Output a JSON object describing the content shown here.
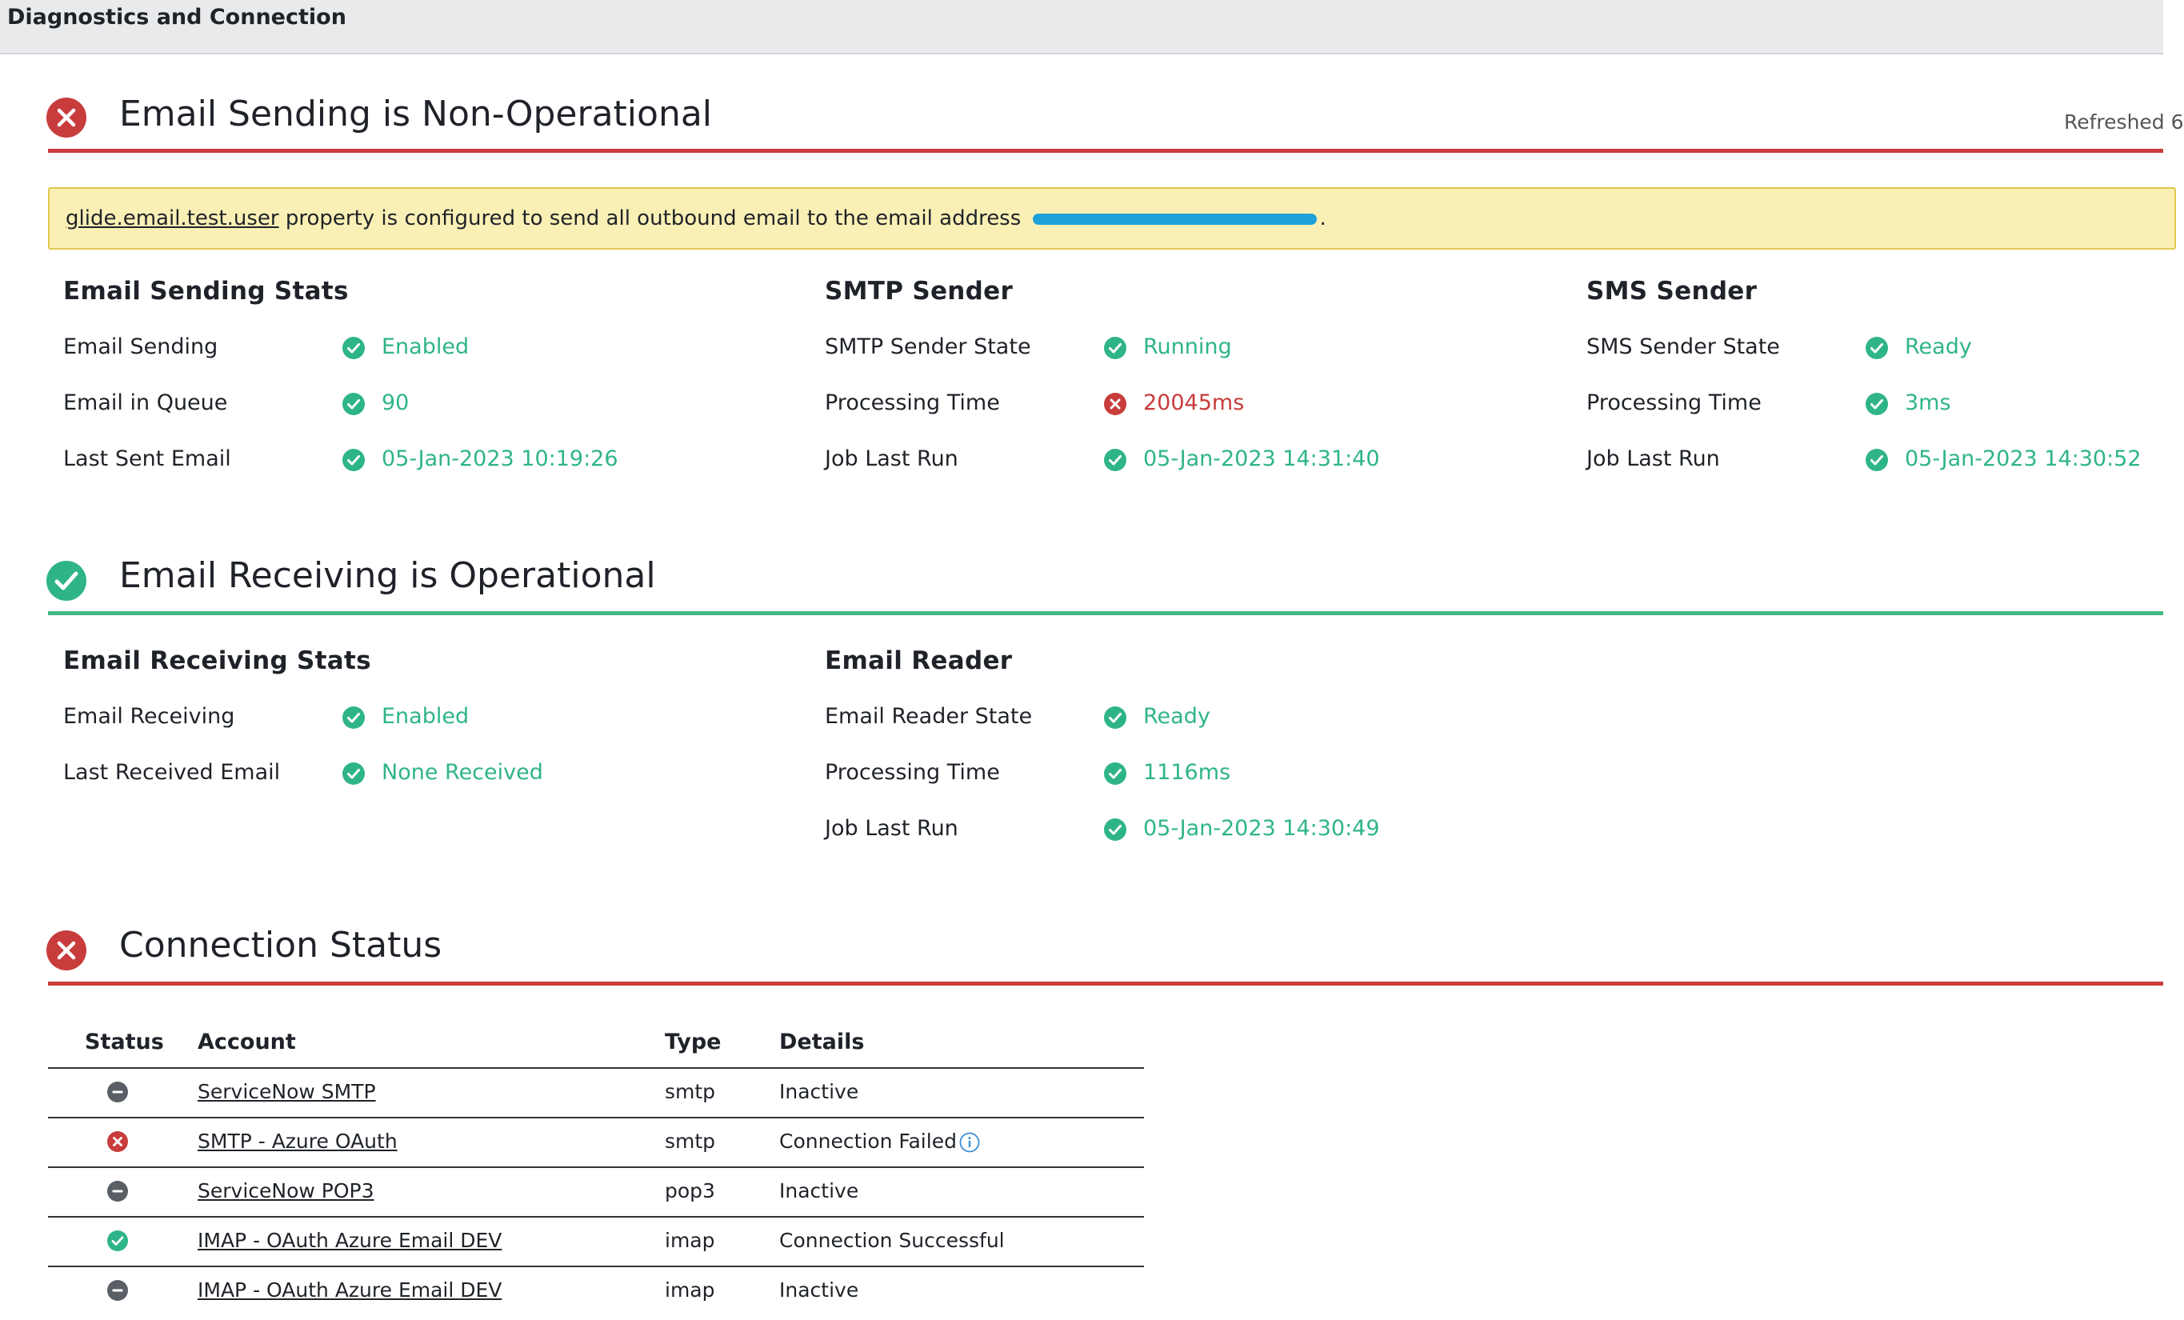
{
  "window": {
    "title": "Diagnostics and Connection"
  },
  "colors": {
    "ok": "#2fb48a",
    "error": "#c83c3c",
    "neutral": "#5a5f66",
    "banner_bg": "#faf0b5",
    "banner_border": "#e3c84f",
    "redaction": "#1ea0d8"
  },
  "sending": {
    "title": "Email Sending is Non-Operational",
    "status_icon": "error-icon",
    "refreshed": "Refreshed 6",
    "banner": {
      "property_link": "glide.email.test.user",
      "message": " property is configured to send all outbound email to the email address ",
      "suffix": "."
    },
    "stats": {
      "title": "Email Sending Stats",
      "rows": [
        {
          "label": "Email Sending",
          "value": "Enabled",
          "status": "ok"
        },
        {
          "label": "Email in Queue",
          "value": "90",
          "status": "ok"
        },
        {
          "label": "Last Sent Email",
          "value": "05-Jan-2023 10:19:26",
          "status": "ok"
        }
      ]
    },
    "smtp": {
      "title": "SMTP Sender",
      "rows": [
        {
          "label": "SMTP Sender State",
          "value": "Running",
          "status": "ok"
        },
        {
          "label": "Processing Time",
          "value": "20045ms",
          "status": "error"
        },
        {
          "label": "Job Last Run",
          "value": "05-Jan-2023 14:31:40",
          "status": "ok"
        }
      ]
    },
    "sms": {
      "title": "SMS Sender",
      "rows": [
        {
          "label": "SMS Sender State",
          "value": "Ready",
          "status": "ok"
        },
        {
          "label": "Processing Time",
          "value": "3ms",
          "status": "ok"
        },
        {
          "label": "Job Last Run",
          "value": "05-Jan-2023 14:30:52",
          "status": "ok"
        }
      ]
    }
  },
  "receiving": {
    "title": "Email Receiving is Operational",
    "status_icon": "check-icon",
    "stats": {
      "title": "Email Receiving Stats",
      "rows": [
        {
          "label": "Email Receiving",
          "value": "Enabled",
          "status": "ok"
        },
        {
          "label": "Last Received Email",
          "value": "None Received",
          "status": "ok"
        }
      ]
    },
    "reader": {
      "title": "Email Reader",
      "rows": [
        {
          "label": "Email Reader State",
          "value": "Ready",
          "status": "ok"
        },
        {
          "label": "Processing Time",
          "value": "1116ms",
          "status": "ok"
        },
        {
          "label": "Job Last Run",
          "value": "05-Jan-2023 14:30:49",
          "status": "ok"
        }
      ]
    }
  },
  "connection": {
    "title": "Connection Status",
    "status_icon": "error-icon",
    "headers": {
      "status": "Status",
      "account": "Account",
      "type": "Type",
      "details": "Details"
    },
    "rows": [
      {
        "status": "inactive",
        "account": "ServiceNow SMTP",
        "type": "smtp",
        "details": "Inactive",
        "info": false
      },
      {
        "status": "error",
        "account": "SMTP - Azure OAuth",
        "type": "smtp",
        "details": "Connection Failed",
        "info": true
      },
      {
        "status": "inactive",
        "account": "ServiceNow POP3",
        "type": "pop3",
        "details": "Inactive",
        "info": false
      },
      {
        "status": "ok",
        "account": "IMAP - OAuth Azure Email DEV",
        "type": "imap",
        "details": "Connection Successful",
        "info": false
      },
      {
        "status": "inactive",
        "account": "IMAP - OAuth Azure Email DEV",
        "type": "imap",
        "details": "Inactive",
        "info": false
      }
    ]
  }
}
